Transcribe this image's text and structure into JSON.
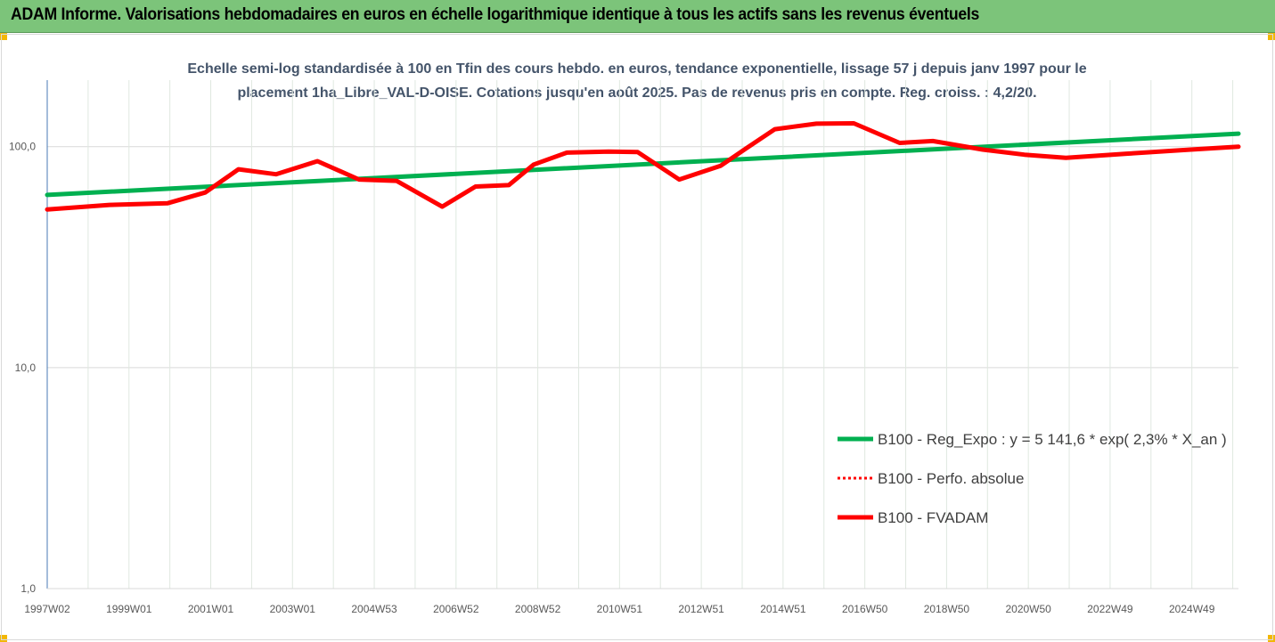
{
  "header": {
    "title": "ADAM Informe. Valorisations hebdomadaires en euros en échelle logarithmique identique à tous les actifs sans les revenus éventuels"
  },
  "chart_data": {
    "type": "line",
    "title_line1": "Echelle semi-log standardisée à 100 en Tfin des cours hebdo. en euros, tendance exponentielle, lissage 57 j depuis janv 1997 pour le",
    "title_line2": "placement 1ha_Libre_VAL-D-OISE. Cotations jusqu'en août 2025. Pas de revenus pris en compte. Reg. croiss. : 4,2/20.",
    "y_scale": "log",
    "ylim": [
      1,
      200
    ],
    "y_ticks": [
      {
        "value": 1,
        "label": "1,0"
      },
      {
        "value": 10,
        "label": "10,0"
      },
      {
        "value": 100,
        "label": "100,0"
      }
    ],
    "x_range": [
      1997.0,
      2025.65
    ],
    "x_ticks": [
      "1997W02",
      "1999W01",
      "2001W01",
      "2003W01",
      "2004W53",
      "2006W52",
      "2008W52",
      "2010W51",
      "2012W51",
      "2014W51",
      "2016W50",
      "2018W50",
      "2020W50",
      "2022W49",
      "2024W49"
    ],
    "gridlines": "vertical",
    "legend_position": "right",
    "series": [
      {
        "name": "B100 - Reg_Expo : y = 5 141,6 * exp( 2,3% *  X_an )",
        "color": "#00b050",
        "style": "solid",
        "x": [
          1997.0,
          2025.65
        ],
        "y": [
          60.5,
          114.5
        ]
      },
      {
        "name": "B100 - Perfo. absolue",
        "color": "#ff0000",
        "style": "dotted",
        "x": [],
        "y": []
      },
      {
        "name": "B100 - FVADAM",
        "color": "#ff0000",
        "style": "solid",
        "x": [
          1997.0,
          1998.5,
          1999.9,
          2000.8,
          2001.6,
          2002.5,
          2003.5,
          2004.5,
          2005.4,
          2006.5,
          2007.3,
          2008.1,
          2008.7,
          2009.5,
          2010.5,
          2011.2,
          2012.2,
          2013.2,
          2013.8,
          2014.5,
          2015.5,
          2016.4,
          2017.5,
          2018.3,
          2019.5,
          2020.5,
          2021.5,
          2023.0,
          2024.5,
          2025.65
        ],
        "y": [
          52,
          54.5,
          55.5,
          62,
          79,
          75,
          86,
          71,
          70,
          53.5,
          66,
          67,
          83,
          94,
          95,
          94.5,
          71,
          82,
          98,
          120,
          127,
          127.5,
          104,
          106,
          97,
          92,
          89,
          93,
          97,
          100
        ]
      }
    ]
  }
}
